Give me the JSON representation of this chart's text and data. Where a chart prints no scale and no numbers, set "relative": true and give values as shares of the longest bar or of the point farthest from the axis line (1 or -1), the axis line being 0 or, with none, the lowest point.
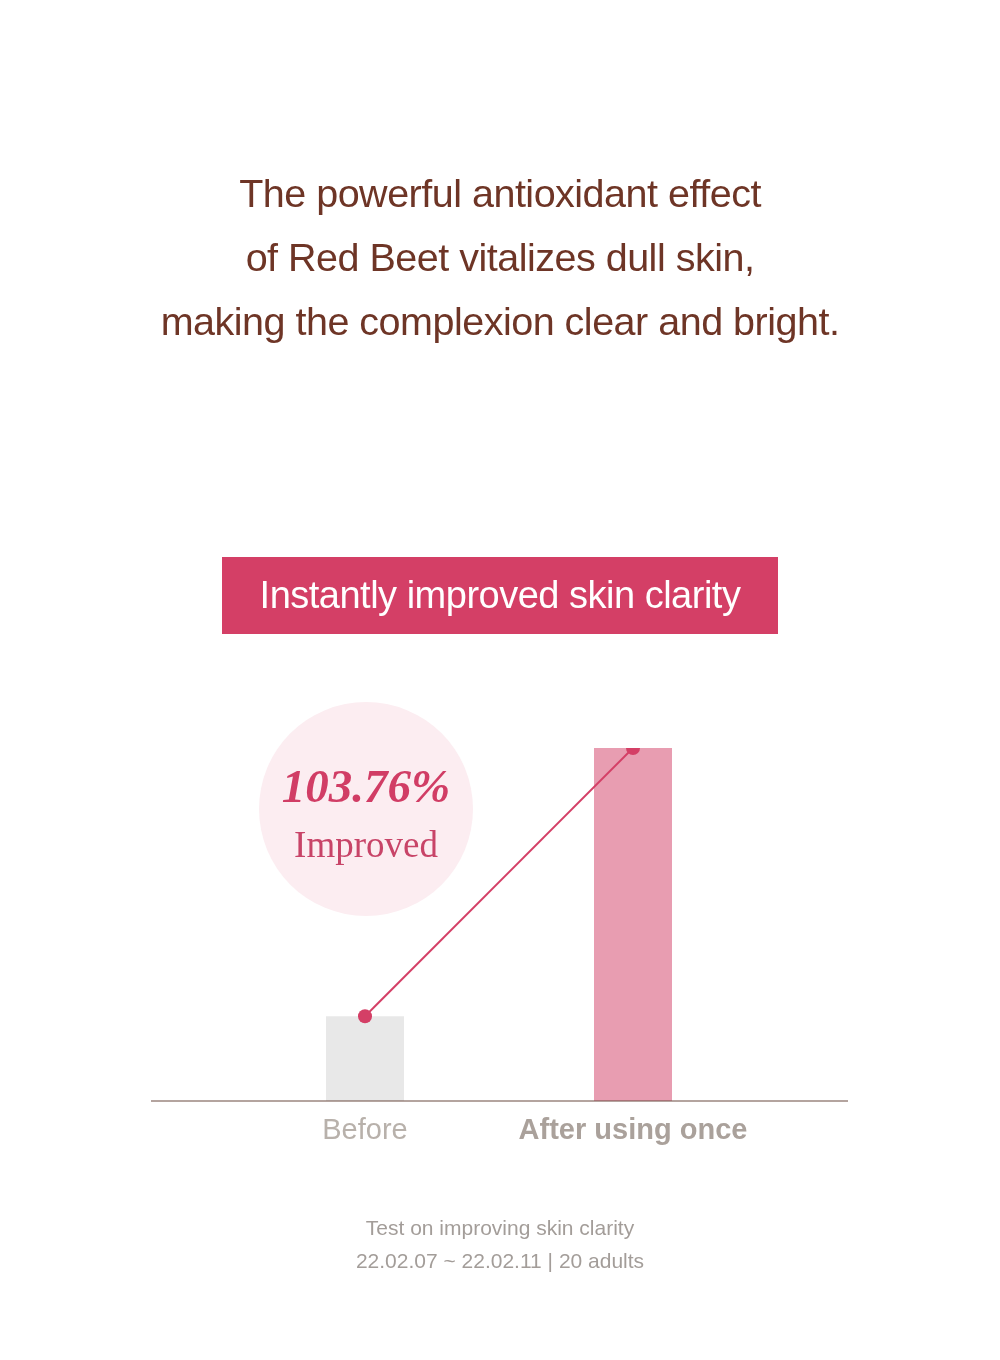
{
  "chart_data": {
    "type": "bar",
    "title": "The powerful antioxidant effect\nof Red Beet vitalizes dull skin,\nmaking the complexion clear and bright.",
    "subtitle": "Instantly improved skin clarity",
    "categories": [
      "Before",
      "After using once"
    ],
    "relative": true,
    "series": [
      {
        "colors": [
          "#e8e8e8",
          "#e89db1"
        ],
        "values": [
          0.24,
          1
        ]
      },
      {
        "type": "line",
        "color": "#d43f66",
        "values": [
          0.24,
          1
        ]
      }
    ],
    "marker": "circle",
    "annotations": [
      "103.76%",
      "Improved",
      "Test on improving skin clarity",
      "22.02.07 ~ 22.02.11 | 20 adults"
    ]
  }
}
